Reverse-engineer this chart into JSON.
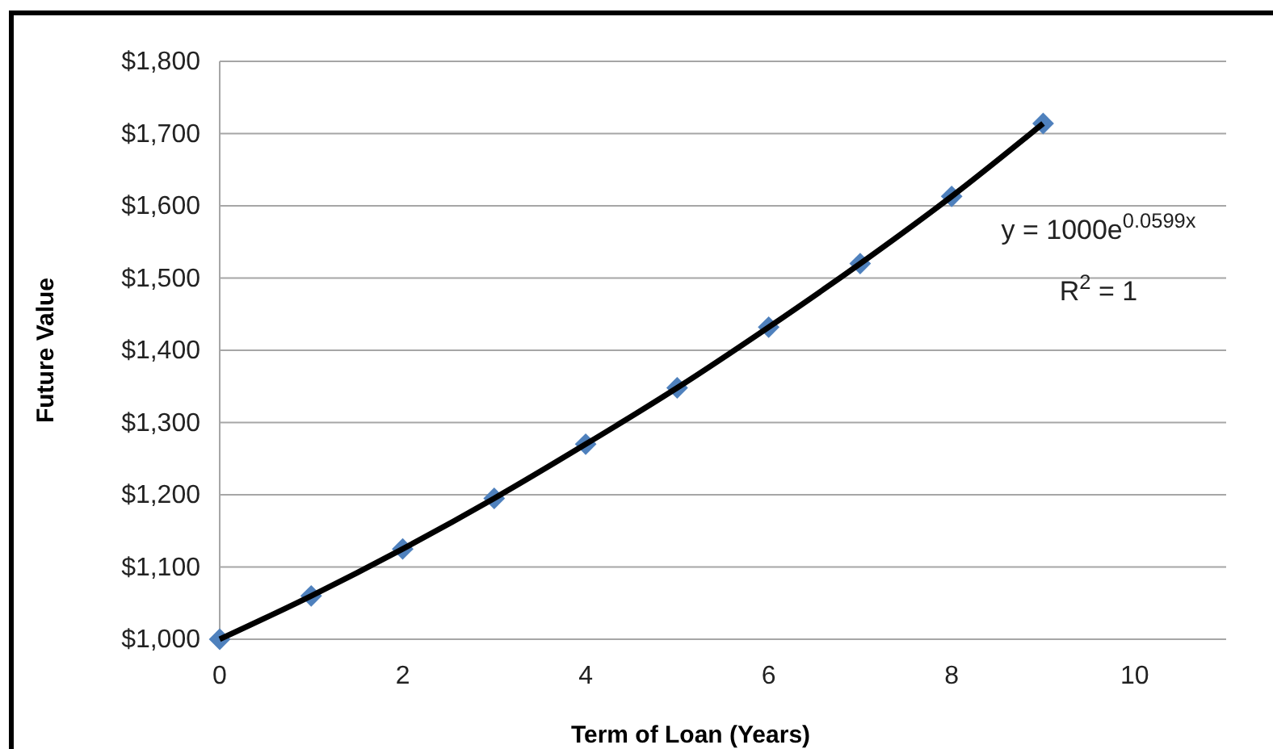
{
  "chart_data": {
    "type": "scatter",
    "xlabel": "Term of Loan (Years)",
    "ylabel": "Future Value",
    "xlim": [
      0,
      11
    ],
    "xticks": [
      0,
      2,
      4,
      6,
      8,
      10
    ],
    "ylim": [
      1000,
      1800
    ],
    "yticks": [
      {
        "value": 1000,
        "label": "$1,000"
      },
      {
        "value": 1100,
        "label": "$1,100"
      },
      {
        "value": 1200,
        "label": "$1,200"
      },
      {
        "value": 1300,
        "label": "$1,300"
      },
      {
        "value": 1400,
        "label": "$1,400"
      },
      {
        "value": 1500,
        "label": "$1,500"
      },
      {
        "value": 1600,
        "label": "$1,600"
      },
      {
        "value": 1700,
        "label": "$1,700"
      },
      {
        "value": 1800,
        "label": "$1,800"
      }
    ],
    "grid": "y",
    "marker": "diamond",
    "annotations": [
      "y = 1000e$^{0.0599x}$",
      "R$^{2}$ = 1"
    ],
    "series": [
      {
        "type": "line",
        "marker": "none",
        "color": "#000000",
        "x": [
          0,
          1,
          2,
          3,
          4,
          5,
          6,
          7,
          8,
          9
        ],
        "values": [
          1000,
          1060,
          1125,
          1195,
          1270,
          1348,
          1432,
          1520,
          1613,
          1714
        ]
      },
      {
        "color": "#4f81bd",
        "x": [
          0,
          1,
          2,
          3,
          4,
          5,
          6,
          7,
          8,
          9
        ],
        "values": [
          1000,
          1060,
          1125,
          1195,
          1270,
          1348,
          1432,
          1520,
          1613,
          1714
        ]
      }
    ]
  }
}
